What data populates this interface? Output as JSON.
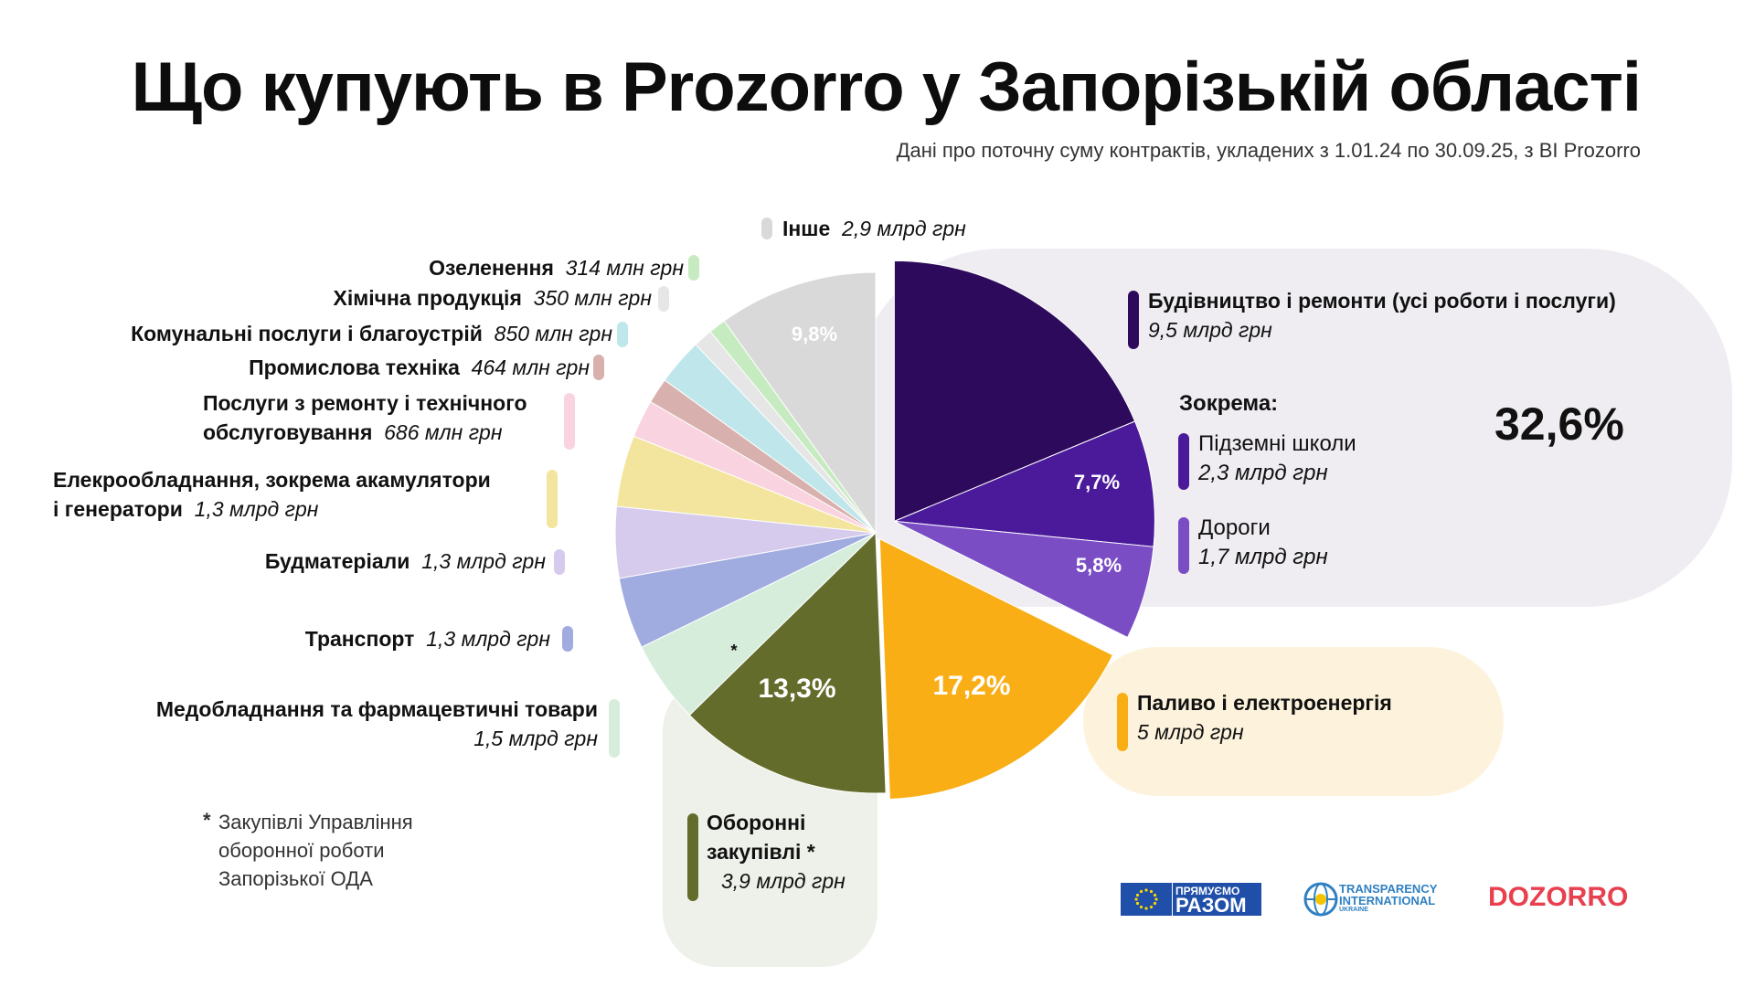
{
  "title": "Що купують в Prozorro у Запорізькій області",
  "subtitle": "Дані про поточну суму контрактів, укладених з 1.01.24 по 30.09.25, з BI Prozorro",
  "chart_data": {
    "type": "pie",
    "title": "Що купують в Prozorro у Запорізькій області",
    "unit": "грн",
    "slices": [
      {
        "name": "Будівництво і ремонти (усі роботи і послуги)",
        "value": 5.5,
        "color": "#2d0a5c"
      },
      {
        "name": "Підземні школи",
        "value": 2.3,
        "color": "#4a1a9a",
        "pct_label": "7,7%"
      },
      {
        "name": "Дороги",
        "value": 1.7,
        "color": "#7a4dc4",
        "pct_label": "5,8%"
      },
      {
        "name": "Паливо і електроенергія",
        "value": 5.0,
        "color": "#f9ae16",
        "pct_label": "17,2%"
      },
      {
        "name": "Оборонні закупівлі",
        "value": 3.9,
        "color": "#646c2c",
        "pct_label": "13,3%"
      },
      {
        "name": "Медобладнання та фармацевтичні товари",
        "value": 1.5,
        "color": "#d6eddc"
      },
      {
        "name": "Транспорт",
        "value": 1.3,
        "color": "#a0abe0"
      },
      {
        "name": "Будматеріали",
        "value": 1.3,
        "color": "#d7cbed"
      },
      {
        "name": "Елекрообладнання, зокрема акамулятори і генератори",
        "value": 1.3,
        "color": "#f3e59d"
      },
      {
        "name": "Послуги з ремонту і технічного обслуговування",
        "value": 0.686,
        "color": "#f9d3df"
      },
      {
        "name": "Промислова техніка",
        "value": 0.464,
        "color": "#d8b1ae"
      },
      {
        "name": "Комунальні послуги і благоустрій",
        "value": 0.85,
        "color": "#bfe6ea"
      },
      {
        "name": "Хімічна продукція",
        "value": 0.35,
        "color": "#e6e6e6"
      },
      {
        "name": "Озеленення",
        "value": 0.314,
        "color": "#c7ebc0"
      },
      {
        "name": "Інше",
        "value": 2.9,
        "color": "#d9d9d9",
        "pct_label": "9,8%"
      }
    ],
    "construction_total_pct": "32,6%"
  },
  "labels": {
    "inshe": {
      "name": "Інше",
      "amount": "2,9 млрд грн"
    },
    "ozelenennia": {
      "name": "Озеленення",
      "amount": "314 млн грн"
    },
    "khimichna": {
      "name": "Хімічна продукція",
      "amount": "350 млн грн"
    },
    "komunalni": {
      "name": "Комунальні послуги і благоустрій",
      "amount": "850 млн грн"
    },
    "promyslova": {
      "name": "Промислова техніка",
      "amount": "464 млн грн"
    },
    "poslugy_1": "Послуги з ремонту і технічного",
    "poslugy_2": "обслуговування",
    "poslugy_amount": "686 млн грн",
    "elektro_1": "Елекрообладнання, зокрема акамулятори",
    "elektro_2": "і генератори",
    "elektro_amount": "1,3 млрд грн",
    "budmat": {
      "name": "Будматеріали",
      "amount": "1,3 млрд грн"
    },
    "transport": {
      "name": "Транспорт",
      "amount": "1,3 млрд грн"
    },
    "med_name": "Медобладнання та фармацевтичні товари",
    "med_amount": "1,5 млрд грн",
    "budivnytstvo_name": "Будівництво і ремонти (усі роботи і послуги)",
    "budivnytstvo_amount": "9,5 млрд грн",
    "zokrema": "Зокрема:",
    "shkoly_name": "Підземні школи",
    "shkoly_amount": "2,3 млрд грн",
    "dorogy_name": "Дороги",
    "dorogy_amount": "1,7 млрд грн",
    "palyvo_name": "Паливо і електроенергія",
    "palyvo_amount": "5 млрд грн",
    "oboronni_1": "Оборонні",
    "oboronni_2": "закупівлі *",
    "oboronni_amount": "3,9 млрд грн",
    "star": "*"
  },
  "footnote": {
    "star": "*",
    "lines": [
      "Закупівлі Управління",
      "оборонної роботи",
      "Запорізької ОДА"
    ]
  },
  "logos": {
    "eu_1": "ПРЯМУЄМО",
    "eu_2": "РАЗОМ",
    "ti_1": "TRANSPARENCY",
    "ti_2": "INTERNATIONAL",
    "ti_3": "UKRAINE",
    "dozorro": "DOZORRO"
  },
  "colors": {
    "panel_construction": "#efedf2",
    "panel_fuel": "#fdf3dd",
    "panel_defense": "#eef1e9"
  }
}
